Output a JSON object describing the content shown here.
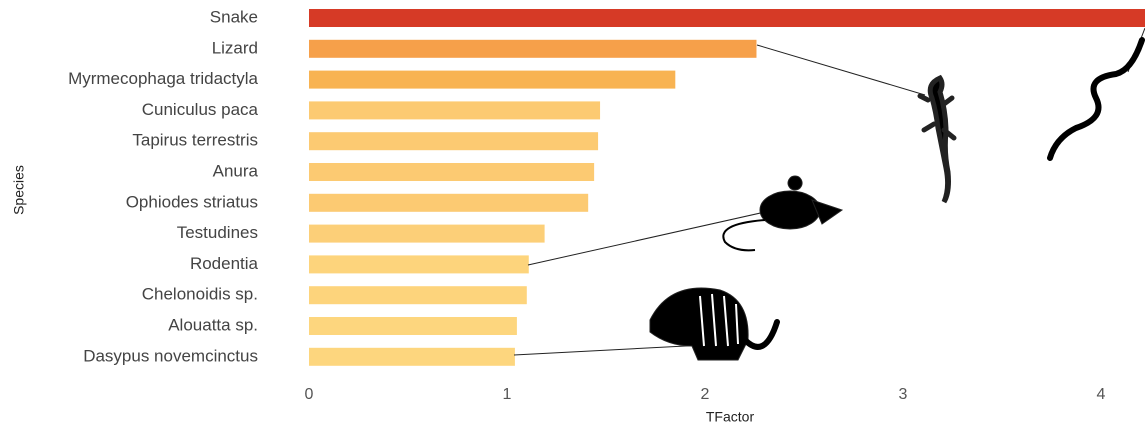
{
  "chart_data": {
    "type": "bar",
    "orientation": "horizontal",
    "x_label": "TFactor",
    "y_label": "Species",
    "categories": [
      "Snake",
      "Lizard",
      "Myrmecophaga tridactyla",
      "Cuniculus paca",
      "Tapirus terrestris",
      "Anura",
      "Ophiodes striatus",
      "Testudines",
      "Rodentia",
      "Chelonoidis sp.",
      "Alouatta sp.",
      "Dasypus novemcinctus"
    ],
    "values": [
      4.3,
      2.26,
      1.85,
      1.47,
      1.46,
      1.44,
      1.41,
      1.19,
      1.11,
      1.1,
      1.05,
      1.04
    ],
    "colors": [
      "#d63a26",
      "#f6a04a",
      "#f8b352",
      "#fcca72",
      "#fcca72",
      "#fcca72",
      "#fcca72",
      "#fccf78",
      "#fdd47c",
      "#fdd47c",
      "#fdd67e",
      "#fdd67e"
    ],
    "xlim": [
      0,
      4.22
    ],
    "xticks": [
      0,
      1,
      2,
      3,
      4
    ],
    "grid": false
  }
}
